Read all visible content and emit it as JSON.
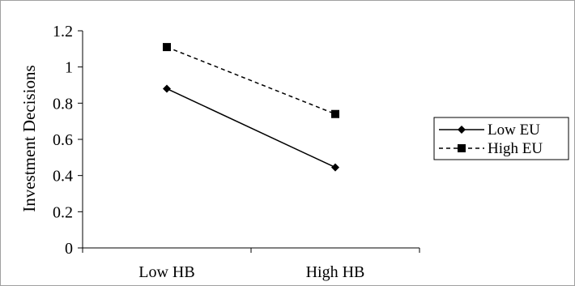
{
  "chart_data": {
    "type": "line",
    "categories": [
      "Low HB",
      "High HB"
    ],
    "series": [
      {
        "name": "Low EU",
        "values": [
          0.88,
          0.445
        ],
        "marker": "diamond",
        "line_style": "solid",
        "color": "#000000"
      },
      {
        "name": "High EU",
        "values": [
          1.11,
          0.74
        ],
        "marker": "square",
        "line_style": "dashed",
        "color": "#000000"
      }
    ],
    "title": "",
    "xlabel": "",
    "ylabel": "Investment Decisions",
    "ylim": [
      0,
      1.2
    ],
    "yticks": [
      0,
      0.2,
      0.4,
      0.6,
      0.8,
      1,
      1.2
    ],
    "ytick_labels": [
      "0",
      "0.2",
      "0.4",
      "0.6",
      "0.8",
      "1",
      "1.2"
    ],
    "grid": false,
    "legend_position": "right"
  }
}
